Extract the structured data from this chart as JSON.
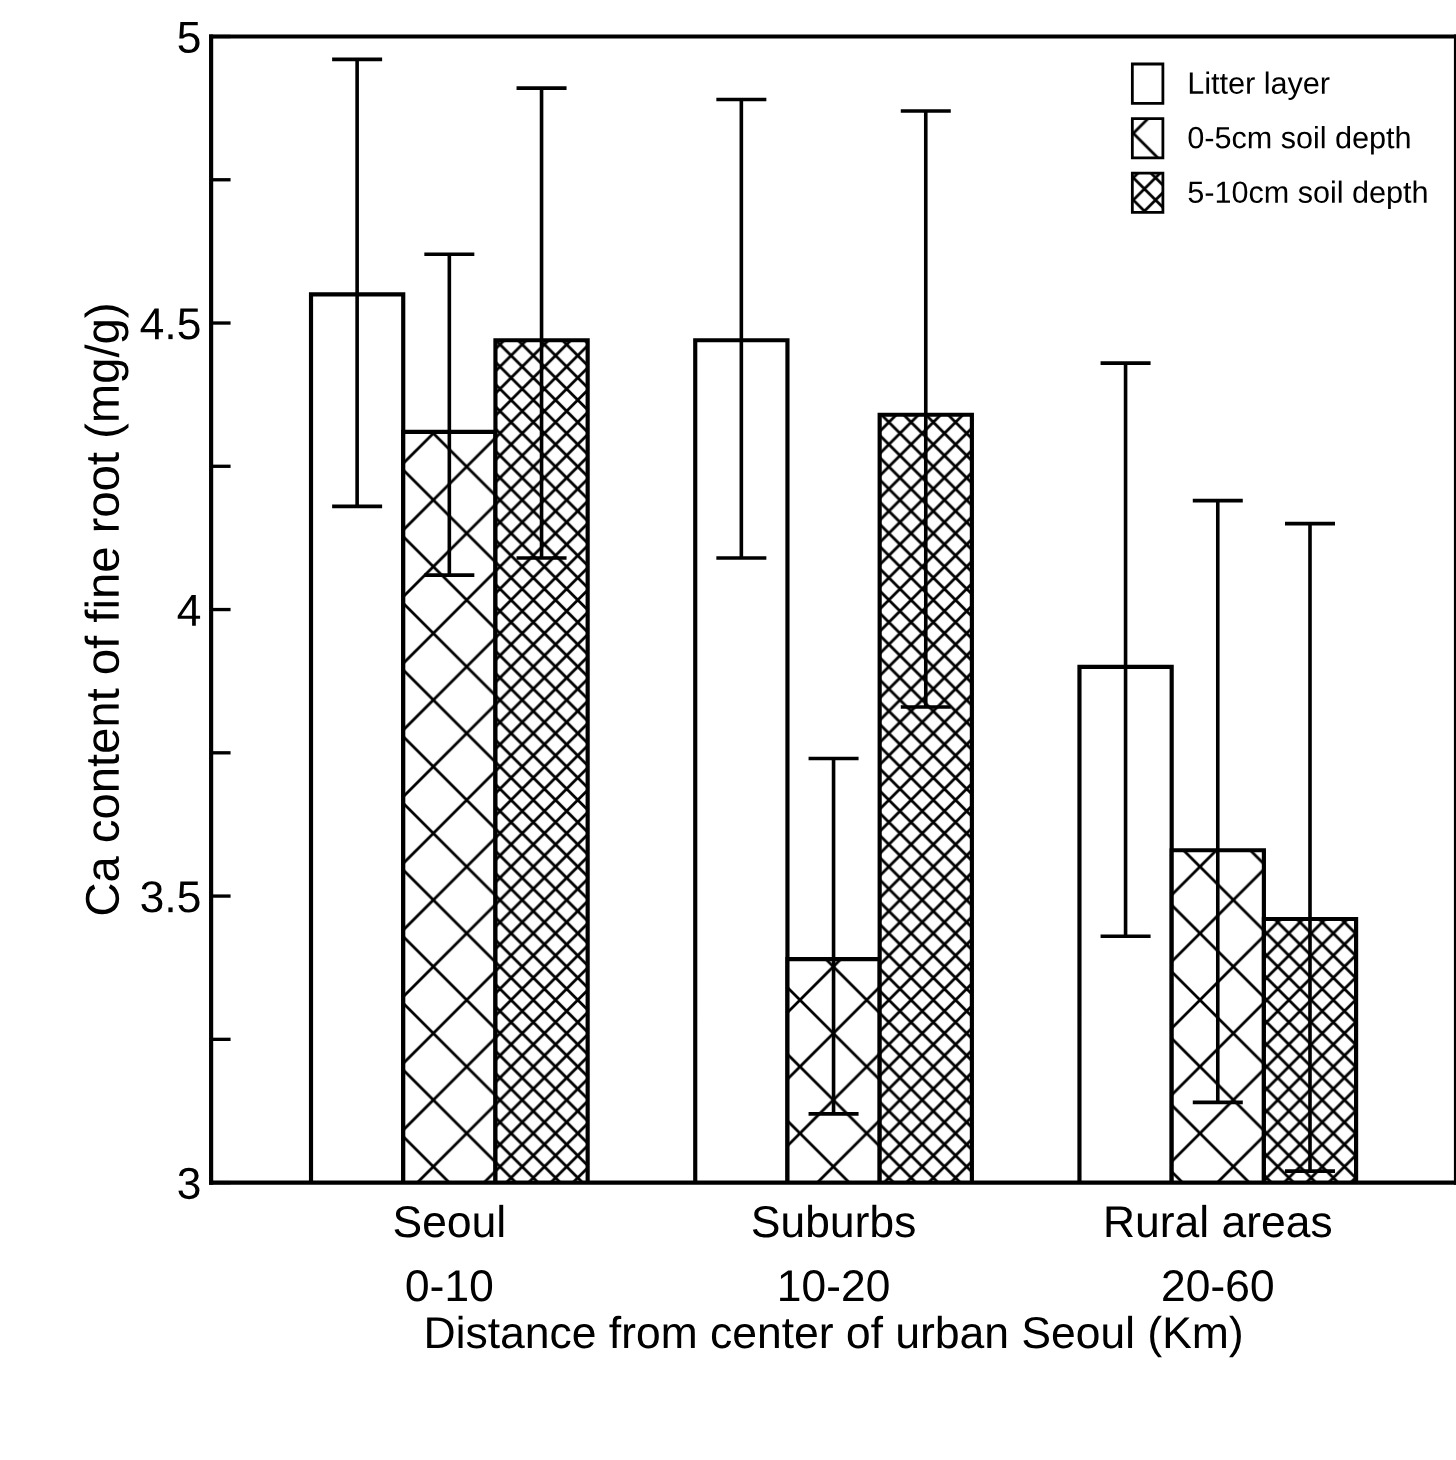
{
  "chart_data": {
    "type": "bar",
    "xlabel": "Distance from center of urban Seoul (Km)",
    "ylabel": "Ca content of fine root (mg/g)",
    "categories": [
      "Seoul\n0-10",
      "Suburbs\n10-20",
      "Rural areas\n20-60"
    ],
    "series": [
      {
        "name": "Litter layer",
        "color": "#ffffff",
        "values": [
          4.55,
          4.47,
          3.9
        ],
        "errors": [
          [
            4.18,
            4.96
          ],
          [
            4.09,
            4.89
          ],
          [
            3.43,
            4.43
          ]
        ]
      },
      {
        "name": "0-5cm soil depth",
        "color": "#000000",
        "values": [
          4.31,
          3.39,
          3.58
        ],
        "errors": [
          [
            4.06,
            4.62
          ],
          [
            3.12,
            3.74
          ],
          [
            3.14,
            4.19
          ]
        ]
      },
      {
        "name": "5-10cm soil depth",
        "color": "#000000",
        "values": [
          4.47,
          4.34,
          3.46
        ],
        "errors": [
          [
            4.09,
            4.91
          ],
          [
            3.83,
            4.87
          ],
          [
            3.02,
            4.15
          ]
        ]
      }
    ],
    "ylim": [
      3,
      5
    ],
    "yticks": [
      3,
      {
        "value": 3.25,
        "label": null
      },
      3.5,
      {
        "value": 3.75,
        "label": null
      },
      4,
      {
        "value": 4.25,
        "label": null
      },
      4.5,
      {
        "value": 4.75,
        "label": null
      },
      5
    ],
    "legend": "top right",
    "grid": false
  }
}
